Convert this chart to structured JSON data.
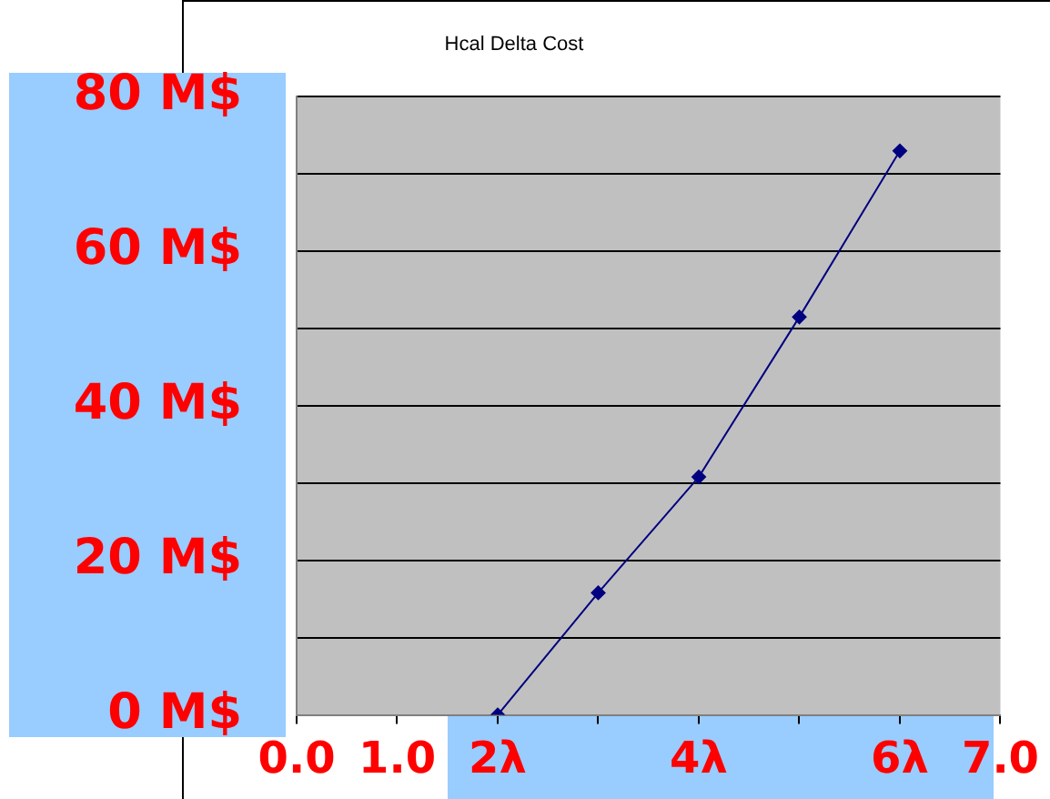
{
  "chart_data": {
    "type": "line",
    "title": "Hcal Delta Cost",
    "x": [
      2,
      3,
      4,
      5,
      6
    ],
    "series": [
      {
        "color": "#000080",
        "values": [
          0,
          15.8,
          30.8,
          51.5,
          73
        ]
      }
    ],
    "xlim": [
      0,
      7
    ],
    "xticks": [
      {
        "value": 0,
        "label": "0.0"
      },
      {
        "value": 1,
        "label": "1.0"
      },
      {
        "value": 2,
        "label": "2λ"
      },
      {
        "value": 3,
        "label": null
      },
      {
        "value": 4,
        "label": "4λ"
      },
      {
        "value": 5,
        "label": null
      },
      {
        "value": 6,
        "label": "6λ"
      },
      {
        "value": 7,
        "label": "7.0"
      }
    ],
    "ylim": [
      0,
      80
    ],
    "yticks": [
      {
        "value": 0,
        "label": "0 M$"
      },
      {
        "value": 10,
        "label": null
      },
      {
        "value": 20,
        "label": "20 M$"
      },
      {
        "value": 30,
        "label": null
      },
      {
        "value": 40,
        "label": "40 M$"
      },
      {
        "value": 50,
        "label": null
      },
      {
        "value": 60,
        "label": "60 M$"
      },
      {
        "value": 70,
        "label": null
      },
      {
        "value": 80,
        "label": "80 M$"
      }
    ],
    "grid": "y",
    "marker": "diamond",
    "line_style": "solid",
    "legend": false
  }
}
